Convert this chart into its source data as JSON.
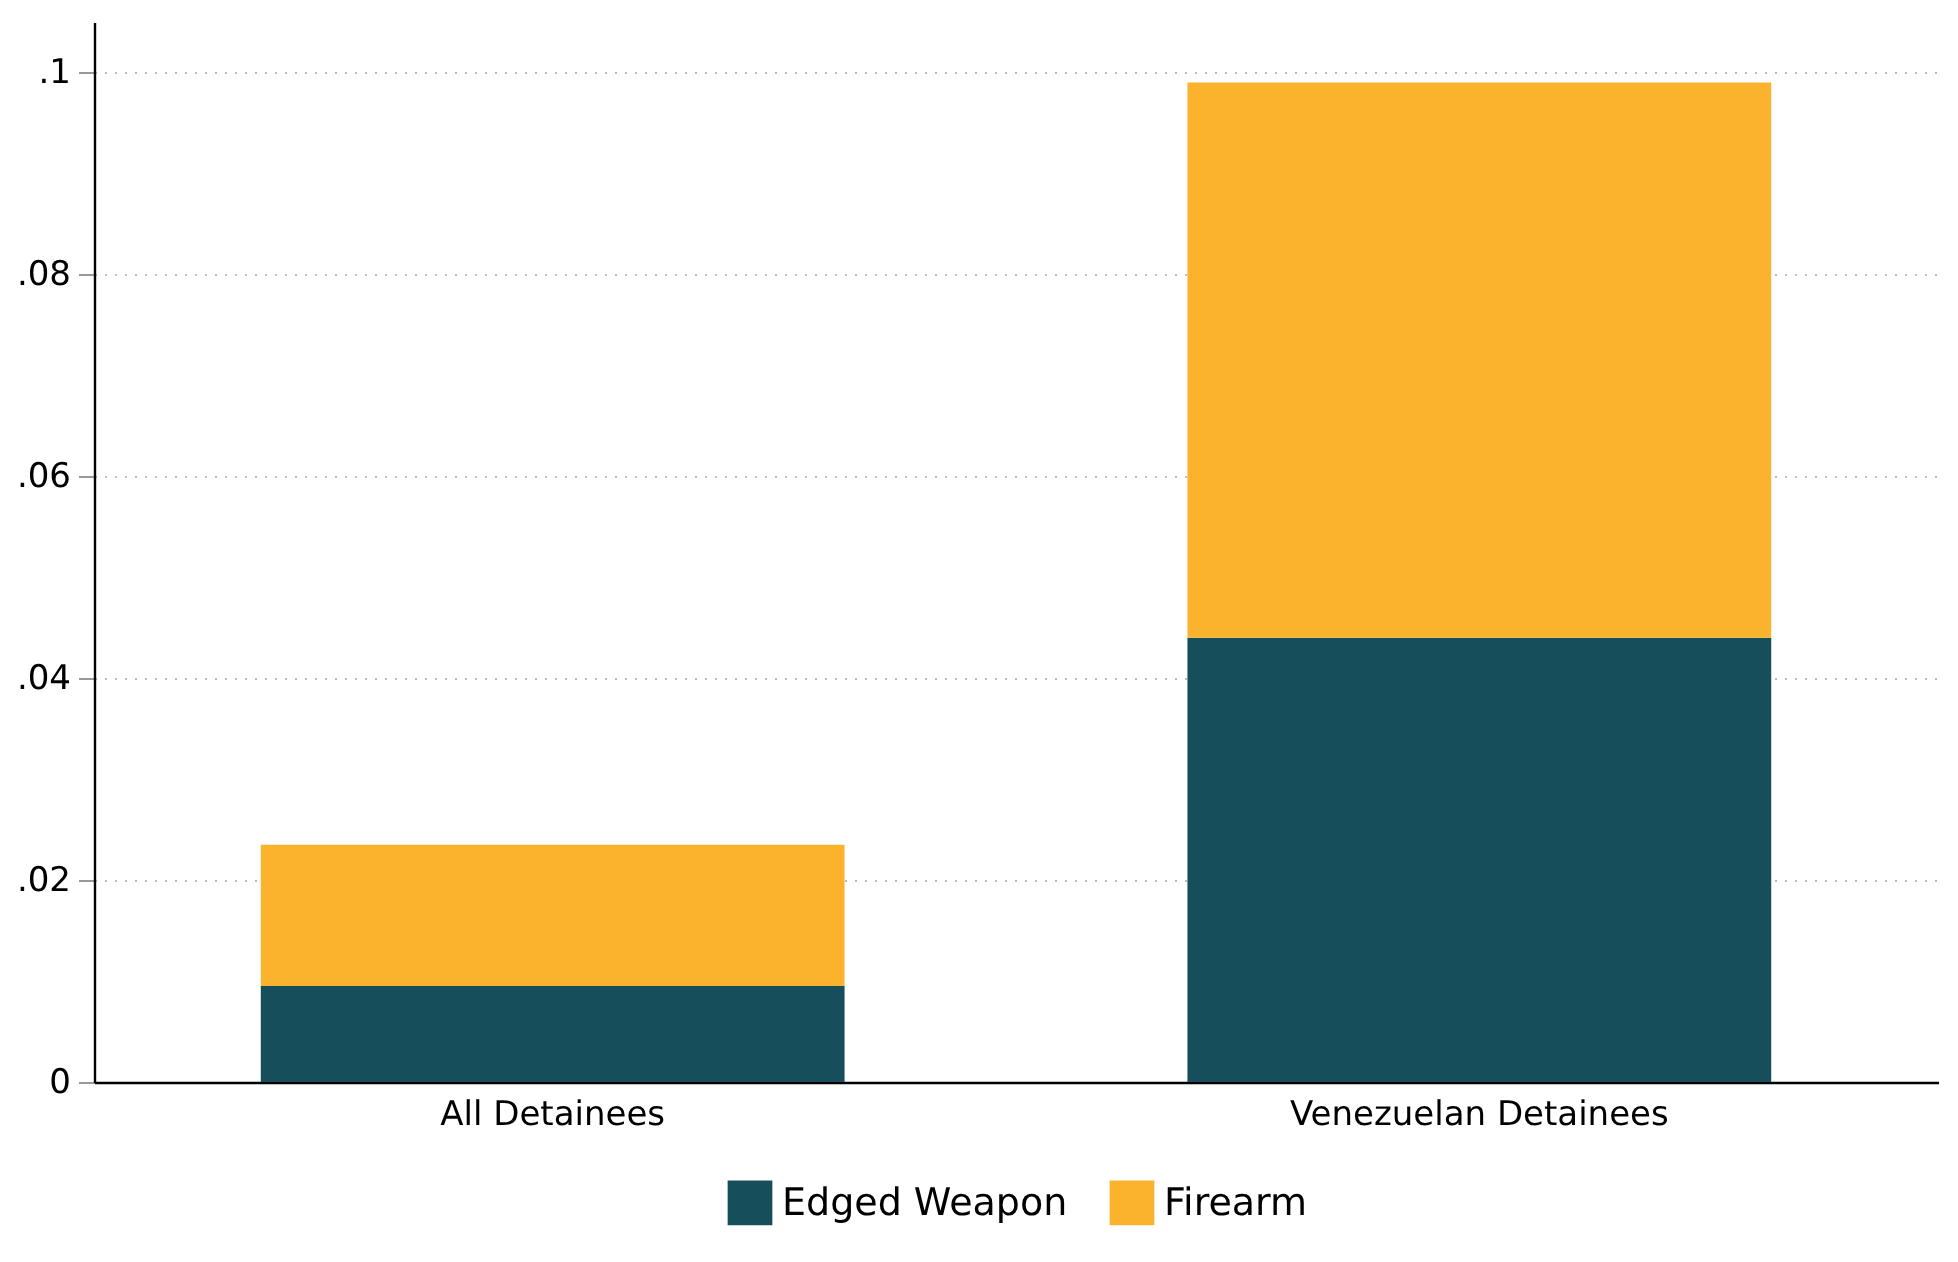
{
  "chart_data": {
    "type": "bar",
    "stacked": true,
    "categories": [
      "All Detainees",
      "Venezuelan Detainees"
    ],
    "series": [
      {
        "name": "Edged Weapon",
        "color": "#174e5c",
        "values": [
          0.0095,
          0.044
        ]
      },
      {
        "name": "Firearm",
        "color": "#fbb32e",
        "values": [
          0.014,
          0.055
        ]
      }
    ],
    "ylim": [
      0,
      0.105
    ],
    "yticks": [
      0,
      {
        "value": 0.02,
        "label": ".02"
      },
      {
        "value": 0.04,
        "label": ".04"
      },
      {
        "value": 0.06,
        "label": ".06"
      },
      {
        "value": 0.08,
        "label": ".08"
      },
      {
        "value": 0.1,
        "label": ".1"
      }
    ],
    "grid": "y",
    "legend": "bottom"
  }
}
